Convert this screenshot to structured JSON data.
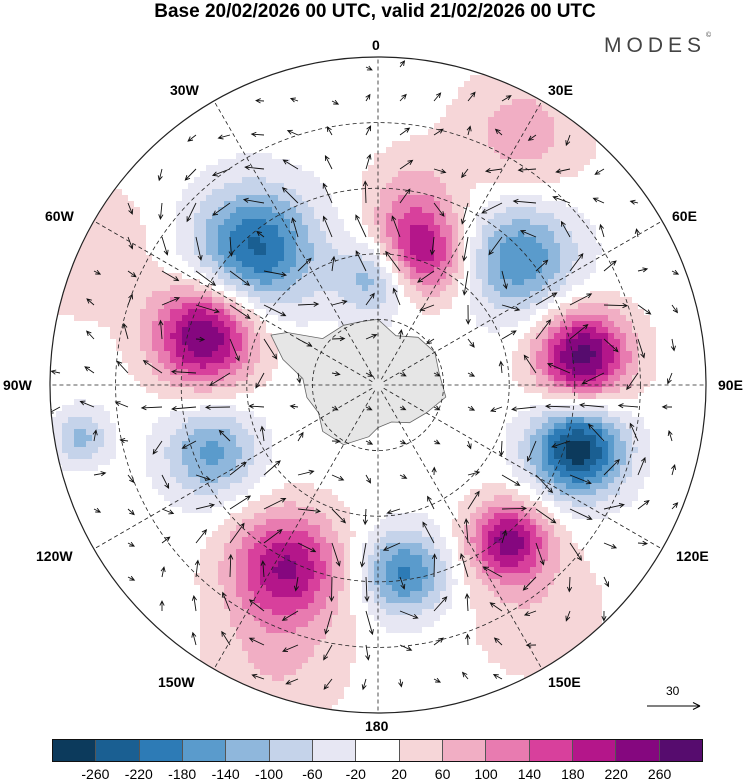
{
  "title": "Base 20/02/2026 00 UTC, valid 21/02/2026 00 UTC",
  "brand": "MODES",
  "brand_mark": "©",
  "longitude_labels": {
    "top": "0",
    "top_right": "30E",
    "right_upper": "60E",
    "right": "90E",
    "right_lower": "120E",
    "bottom_right": "150E",
    "bottom": "180",
    "bottom_left": "150W",
    "left_lower": "120W",
    "left": "90W",
    "left_upper": "60W",
    "top_left": "30W"
  },
  "reference_vector": "30",
  "colorbar": {
    "ticks": [
      "-260",
      "-220",
      "-180",
      "-140",
      "-100",
      "-60",
      "-20",
      "20",
      "60",
      "100",
      "140",
      "180",
      "220",
      "260"
    ],
    "colors": [
      "#0c3a5c",
      "#1a5f92",
      "#2d7bb6",
      "#5a9bcc",
      "#8fb7dc",
      "#c5d3ea",
      "#e7e7f3",
      "#ffffff",
      "#f6d6d8",
      "#f1aec4",
      "#e87bb0",
      "#d8409c",
      "#b4168a",
      "#85077f",
      "#560c6e"
    ]
  },
  "field": {
    "anomalies": [
      {
        "lon": 0,
        "colat": 0.33,
        "value": -160,
        "spread": 0.085
      },
      {
        "lon": 10,
        "colat": 0.6,
        "value": 60,
        "spread": 0.1
      },
      {
        "lon": -42,
        "colat": 0.56,
        "value": -230,
        "spread": 0.13
      },
      {
        "lon": 17,
        "colat": 0.42,
        "value": 230,
        "spread": 0.1
      },
      {
        "lon": 48,
        "colat": 0.58,
        "value": -180,
        "spread": 0.12
      },
      {
        "lon": 82,
        "colat": 0.63,
        "value": 280,
        "spread": 0.1
      },
      {
        "lon": 108,
        "colat": 0.64,
        "value": -285,
        "spread": 0.1
      },
      {
        "lon": 140,
        "colat": 0.62,
        "value": 230,
        "spread": 0.085
      },
      {
        "lon": 172,
        "colat": 0.58,
        "value": -190,
        "spread": 0.09
      },
      {
        "lon": -153,
        "colat": 0.62,
        "value": 220,
        "spread": 0.12
      },
      {
        "lon": -112,
        "colat": 0.55,
        "value": -150,
        "spread": 0.1
      },
      {
        "lon": -74,
        "colat": 0.55,
        "value": 270,
        "spread": 0.11
      },
      {
        "lon": -100,
        "colat": 0.92,
        "value": -110,
        "spread": 0.06
      },
      {
        "lon": -65,
        "colat": 0.98,
        "value": 55,
        "spread": 0.15
      },
      {
        "lon": 30,
        "colat": 0.88,
        "value": 80,
        "spread": 0.14
      },
      {
        "lon": 145,
        "colat": 0.85,
        "value": 50,
        "spread": 0.15
      },
      {
        "lon": -160,
        "colat": 0.9,
        "value": 60,
        "spread": 0.15
      }
    ],
    "land_outline": [
      [
        0,
        0.2
      ],
      [
        20,
        0.16
      ],
      [
        40,
        0.19
      ],
      [
        60,
        0.2
      ],
      [
        80,
        0.19
      ],
      [
        100,
        0.21
      ],
      [
        120,
        0.17
      ],
      [
        140,
        0.15
      ],
      [
        160,
        0.12
      ],
      [
        180,
        0.13
      ],
      [
        -170,
        0.16
      ],
      [
        -150,
        0.21
      ],
      [
        -130,
        0.22
      ],
      [
        -115,
        0.2
      ],
      [
        -100,
        0.22
      ],
      [
        -85,
        0.23
      ],
      [
        -75,
        0.3
      ],
      [
        -65,
        0.36
      ],
      [
        -60,
        0.32
      ],
      [
        -50,
        0.22
      ],
      [
        -30,
        0.21
      ],
      [
        -15,
        0.2
      ]
    ]
  }
}
